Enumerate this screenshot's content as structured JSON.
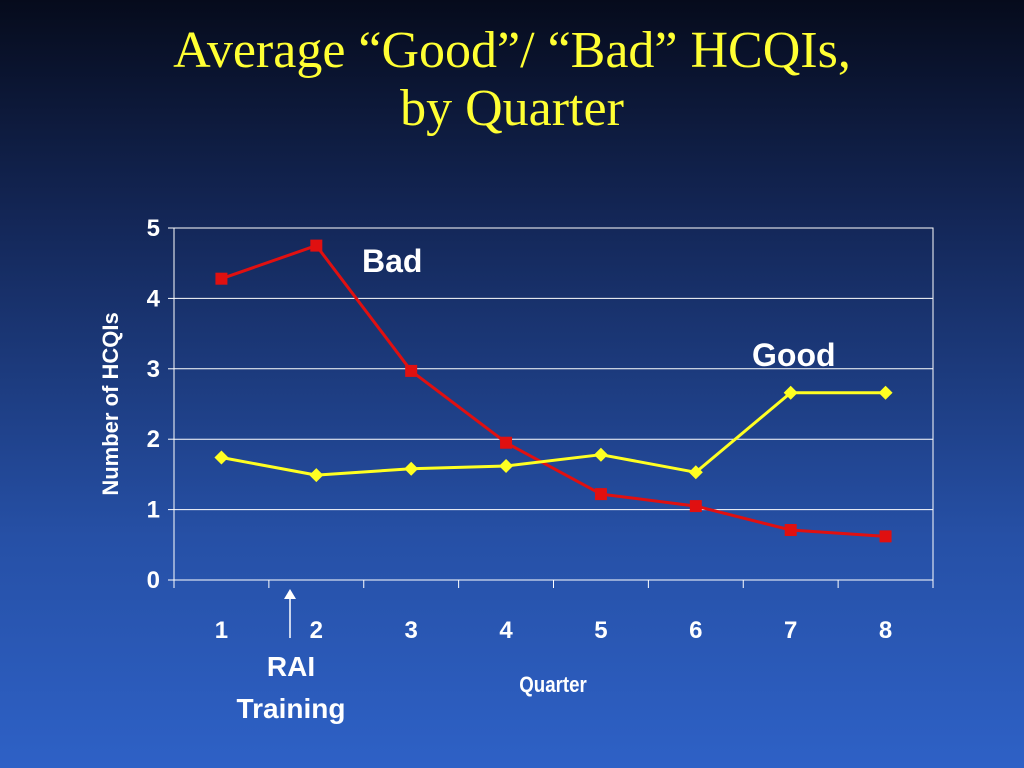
{
  "slide": {
    "title_line1": "Average “Good”/ “Bad” HCQIs,",
    "title_line2": "by Quarter"
  },
  "chart_data": {
    "type": "line",
    "title": "Average “Good”/ “Bad” HCQIs, by Quarter",
    "xlabel": "Quarter",
    "ylabel": "Number of HCQIs",
    "categories": [
      "1",
      "2",
      "3",
      "4",
      "5",
      "6",
      "7",
      "8"
    ],
    "ylim": [
      0,
      5
    ],
    "yticks": [
      "0",
      "1",
      "2",
      "3",
      "4",
      "5"
    ],
    "grid": true,
    "series": [
      {
        "name": "Bad",
        "color": "#e01010",
        "marker": "square",
        "values": [
          4.28,
          4.75,
          2.97,
          1.95,
          1.22,
          1.05,
          0.71,
          0.62
        ]
      },
      {
        "name": "Good",
        "color": "#ffff22",
        "marker": "diamond",
        "values": [
          1.74,
          1.49,
          1.58,
          1.62,
          1.78,
          1.53,
          2.66,
          2.66
        ]
      }
    ],
    "annotations": [
      {
        "text_line1": "RAI",
        "text_line2": "Training",
        "between_categories": [
          "1",
          "2"
        ],
        "marker": "arrow"
      }
    ]
  }
}
